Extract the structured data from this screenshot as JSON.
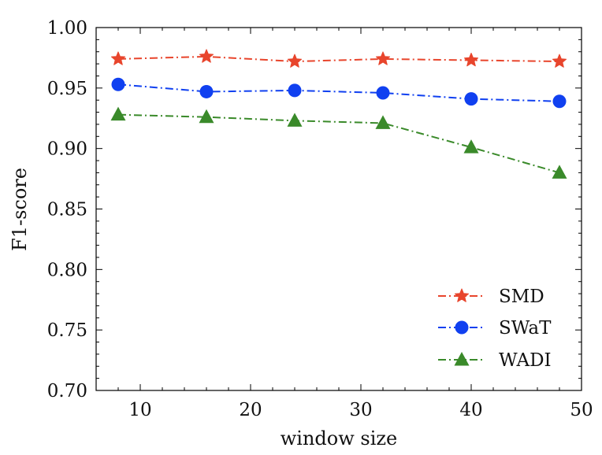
{
  "chart_data": {
    "type": "line",
    "title": "",
    "xlabel": "window size",
    "ylabel": "F1-score",
    "xlim": [
      6,
      50
    ],
    "ylim": [
      0.7,
      1.0
    ],
    "x_ticks": [
      10,
      20,
      30,
      40,
      50
    ],
    "x_tick_labels": [
      "10",
      "20",
      "30",
      "40",
      "50"
    ],
    "y_ticks": [
      0.7,
      0.75,
      0.8,
      0.85,
      0.9,
      0.95,
      1.0
    ],
    "y_tick_labels": [
      "0.70",
      "0.75",
      "0.80",
      "0.85",
      "0.90",
      "0.95",
      "1.00"
    ],
    "x": [
      8,
      16,
      24,
      32,
      40,
      48
    ],
    "legend_position": "lower-right",
    "grid": false,
    "series": [
      {
        "name": "SMD",
        "color": "#e8452c",
        "marker": "star",
        "values": [
          0.974,
          0.976,
          0.972,
          0.974,
          0.973,
          0.972
        ]
      },
      {
        "name": "SWaT",
        "color": "#1040f0",
        "marker": "circle",
        "values": [
          0.953,
          0.947,
          0.948,
          0.946,
          0.941,
          0.939
        ]
      },
      {
        "name": "WADI",
        "color": "#3a8a2a",
        "marker": "triangle",
        "values": [
          0.928,
          0.926,
          0.923,
          0.921,
          0.901,
          0.88
        ]
      }
    ]
  }
}
